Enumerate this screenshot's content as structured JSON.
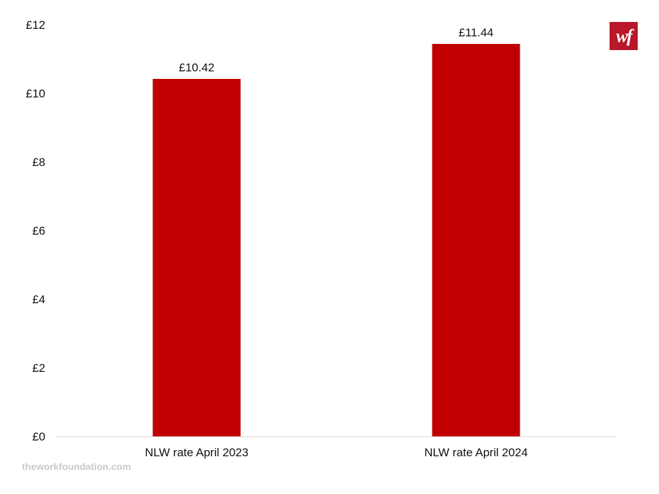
{
  "brand": {
    "logo_text": "wf",
    "logo_color": "#b8182a",
    "footer_text": "theworkfoundation.com"
  },
  "chart_data": {
    "type": "bar",
    "title": "",
    "xlabel": "",
    "ylabel": "",
    "categories": [
      "NLW rate April 2023",
      "NLW rate April 2024"
    ],
    "values": [
      10.42,
      11.44
    ],
    "data_labels": [
      "£10.42",
      "£11.44"
    ],
    "ylim": [
      0,
      12
    ],
    "yticks": [
      0,
      2,
      4,
      6,
      8,
      10,
      12
    ],
    "ytick_labels": [
      "£0",
      "£2",
      "£4",
      "£6",
      "£8",
      "£10",
      "£12"
    ],
    "bar_color": "#c00000",
    "grid": false,
    "legend": "none"
  }
}
